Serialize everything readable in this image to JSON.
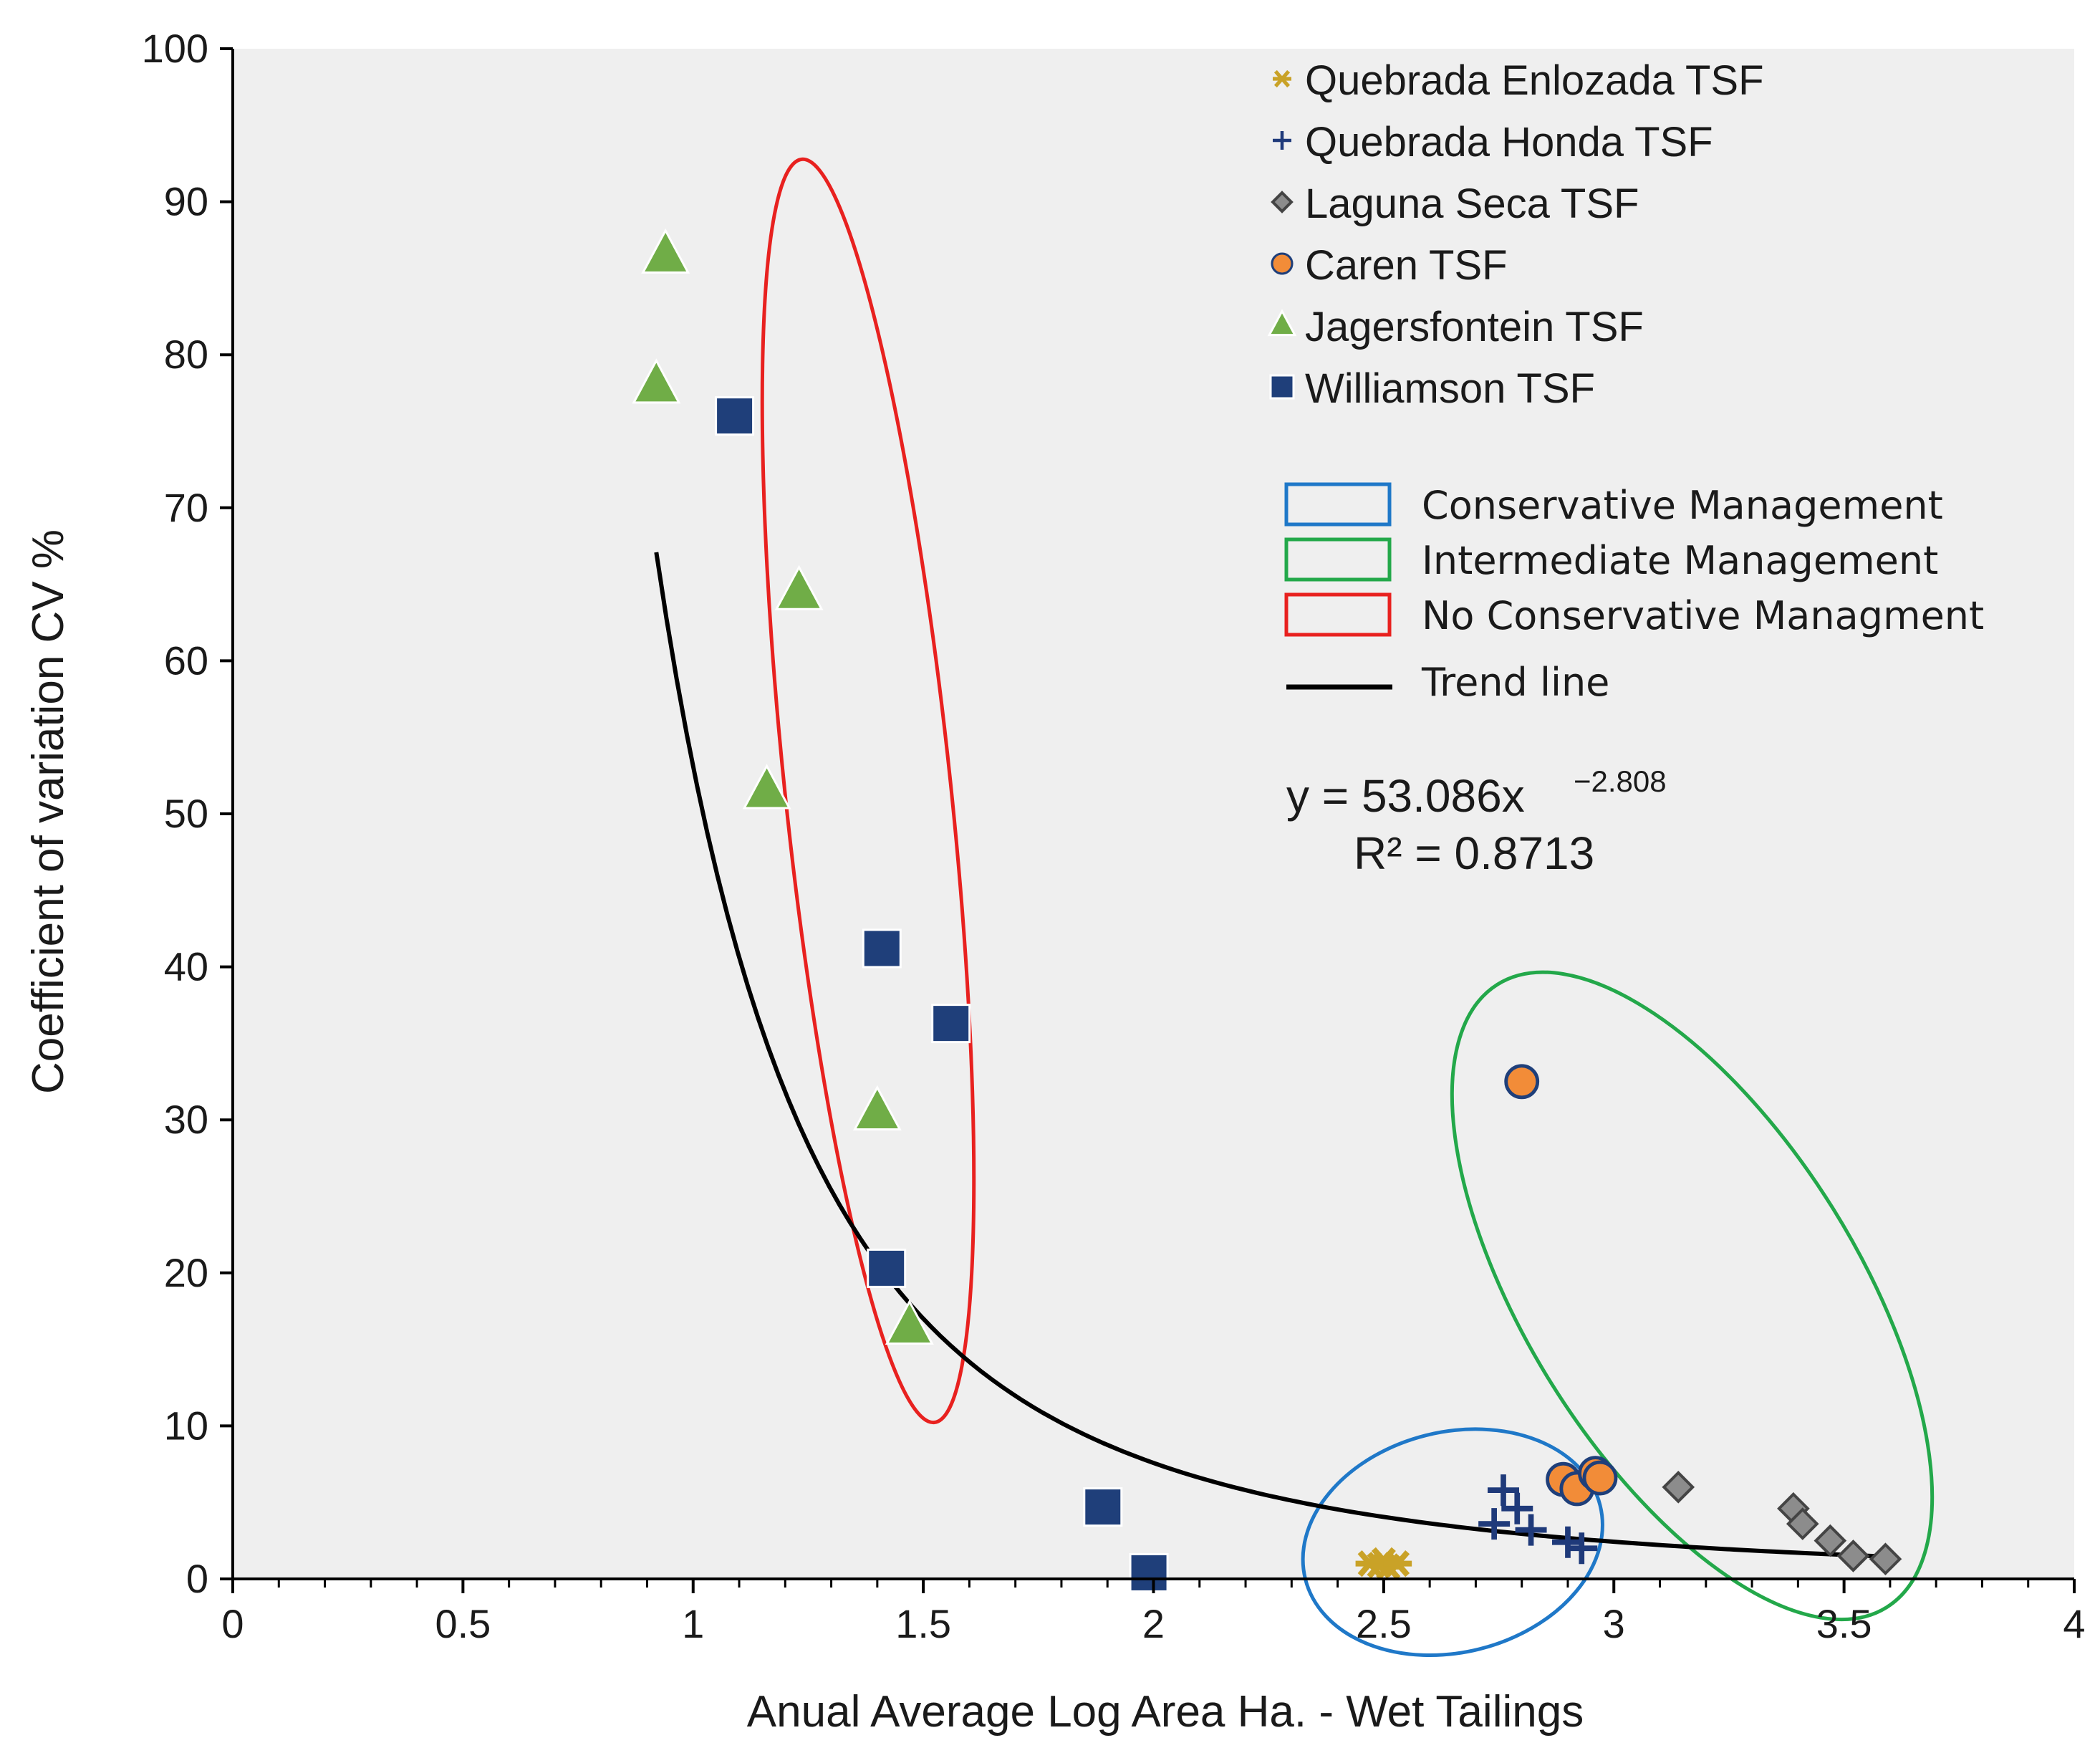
{
  "chart_data": {
    "type": "scatter",
    "title": "",
    "xlabel": "Anual Average  Log Area Ha. - Wet Tailings",
    "ylabel": "Coefficient of variation CV %",
    "xlim": [
      0,
      4
    ],
    "ylim": [
      0,
      100
    ],
    "x_ticks": [
      0,
      0.5,
      1,
      1.5,
      2,
      2.5,
      3,
      3.5,
      4
    ],
    "x_tick_labels": [
      "0",
      "0.5",
      "1",
      "1.5",
      "2",
      "2.5",
      "3",
      "3.5",
      "4"
    ],
    "y_ticks": [
      0,
      10,
      20,
      30,
      40,
      50,
      60,
      70,
      80,
      90,
      100
    ],
    "y_tick_labels": [
      "0",
      "10",
      "20",
      "30",
      "40",
      "50",
      "60",
      "70",
      "80",
      "90",
      "100"
    ],
    "grid": false,
    "plot_background": "#efefef",
    "legend_position": "top-right",
    "series": [
      {
        "name": "Quebrada Enlozada TSF",
        "marker": "star",
        "color": "#c9a227",
        "points": [
          [
            2.47,
            1.0
          ],
          [
            2.49,
            0.9
          ],
          [
            2.5,
            1.2
          ],
          [
            2.51,
            0.8
          ],
          [
            2.53,
            1.0
          ]
        ]
      },
      {
        "name": "Quebrada Honda TSF",
        "marker": "plus",
        "color": "#1f3a7a",
        "points": [
          [
            2.76,
            5.8
          ],
          [
            2.79,
            4.6
          ],
          [
            2.74,
            3.6
          ],
          [
            2.82,
            3.2
          ],
          [
            2.9,
            2.4
          ],
          [
            2.93,
            2.0
          ]
        ]
      },
      {
        "name": "Laguna Seca TSF",
        "marker": "diamond",
        "color": "#8c8c8c",
        "points": [
          [
            3.14,
            6.0
          ],
          [
            3.39,
            4.6
          ],
          [
            3.41,
            3.6
          ],
          [
            3.47,
            2.5
          ],
          [
            3.52,
            1.5
          ],
          [
            3.59,
            1.3
          ]
        ]
      },
      {
        "name": "Caren TSF",
        "marker": "circle",
        "color": "#f28c38",
        "points": [
          [
            2.8,
            32.5
          ],
          [
            2.89,
            6.5
          ],
          [
            2.92,
            5.9
          ],
          [
            2.96,
            6.9
          ],
          [
            2.97,
            6.6
          ]
        ]
      },
      {
        "name": "Jagersfontein TSF",
        "marker": "triangle",
        "color": "#70ad47",
        "points": [
          [
            0.94,
            86.5
          ],
          [
            0.92,
            78.0
          ],
          [
            1.23,
            64.5
          ],
          [
            1.16,
            51.5
          ],
          [
            1.4,
            30.5
          ],
          [
            1.47,
            16.5
          ]
        ]
      },
      {
        "name": "Williamson TSF",
        "marker": "square",
        "color": "#1f3f7a",
        "points": [
          [
            1.09,
            76.0
          ],
          [
            1.41,
            41.2
          ],
          [
            1.56,
            36.3
          ],
          [
            1.42,
            20.3
          ],
          [
            1.89,
            4.7
          ],
          [
            1.99,
            0.4
          ]
        ]
      }
    ],
    "trend_line": {
      "name": "Trend line",
      "equation": "y = 53.086x",
      "exponent": "−2.808",
      "r_squared": "R² = 0.8713",
      "a": 53.086,
      "b": -2.808,
      "x_range": [
        0.92,
        3.57
      ]
    },
    "management_legend": [
      {
        "label": "Conservative Management",
        "color": "#1f78c8"
      },
      {
        "label": "Intermediate Management",
        "color": "#23a84a"
      },
      {
        "label": "No Conservative Managment",
        "color": "#e8211f"
      },
      {
        "label": "Trend line",
        "color": "#000000"
      }
    ],
    "ellipses": [
      {
        "label": "No Conservative Managment",
        "color": "#e8211f",
        "center": [
          1.38,
          51.5
        ],
        "rx": 0.18,
        "ry": 41.5,
        "rotate_deg": -6
      },
      {
        "label": "Conservative Management",
        "color": "#1f78c8",
        "center": [
          2.65,
          2.4
        ],
        "rx": 0.33,
        "ry": 7.2,
        "rotate_deg": -14
      },
      {
        "label": "Intermediate Management",
        "color": "#23a84a",
        "center": [
          3.17,
          18.5
        ],
        "rx": 0.36,
        "ry": 24.0,
        "rotate_deg": -32
      }
    ]
  }
}
